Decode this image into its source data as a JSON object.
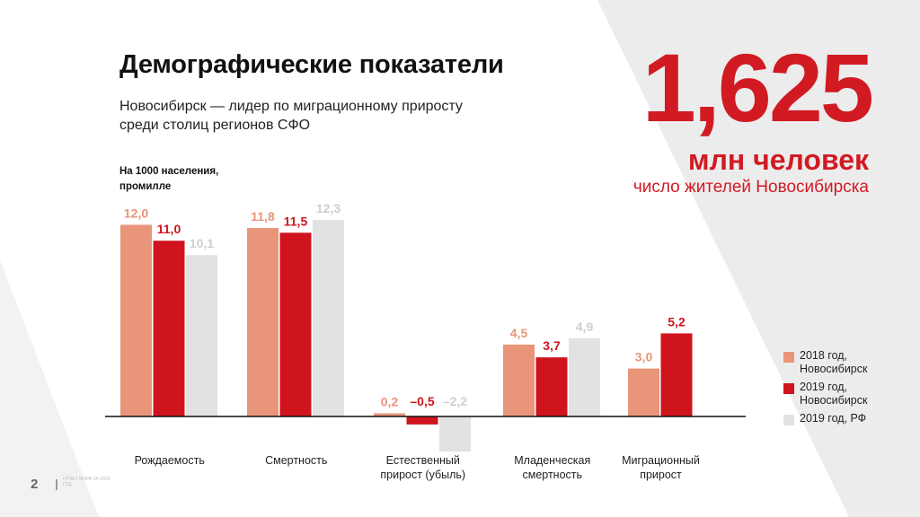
{
  "header": {
    "title": "Демографические показатели",
    "subtitle": "Новосибирск — лидер по миграционному приросту среди столиц регионов СФО"
  },
  "highlight": {
    "value": "1,625",
    "unit": "млн человек",
    "caption": "число жителей Новосибирска"
  },
  "colors": {
    "s2018": "#e8957a",
    "s2019": "#d0141e",
    "rf2019": "#e2e2e2",
    "accent": "#d11a22"
  },
  "chart_data": {
    "type": "bar",
    "units_label": "На 1000 населения, промилле",
    "categories": [
      "Рождаемость",
      "Смертность",
      "Естественный прирост (убыль)",
      "Младенческая смертность",
      "Миграционный прирост"
    ],
    "series": [
      {
        "name": "2018 год, Новосибирск",
        "values": [
          12.0,
          11.8,
          0.2,
          4.5,
          3.0
        ],
        "labels": [
          "12,0",
          "11,8",
          "0,2",
          "4,5",
          "3,0"
        ]
      },
      {
        "name": "2019 год, Новосибирск",
        "values": [
          11.0,
          11.5,
          -0.5,
          3.7,
          5.2
        ],
        "labels": [
          "11,0",
          "11,5",
          "–0,5",
          "3,7",
          "5,2"
        ]
      },
      {
        "name": "2019 год, РФ",
        "values": [
          10.1,
          12.3,
          -2.2,
          4.9,
          null
        ],
        "labels": [
          "10,1",
          "12,3",
          "–2,2",
          "4,9",
          null
        ]
      }
    ],
    "ylim": [
      -2.5,
      13
    ]
  },
  "legend": [
    {
      "label": "2018 год, Новосибирск"
    },
    {
      "label": "2019 год, Новосибирск"
    },
    {
      "label": "2019 год, РФ"
    }
  ],
  "footer": {
    "page": "2",
    "note": "ОТЧЕТ МЭРА ЗА 2019 ГОД"
  }
}
